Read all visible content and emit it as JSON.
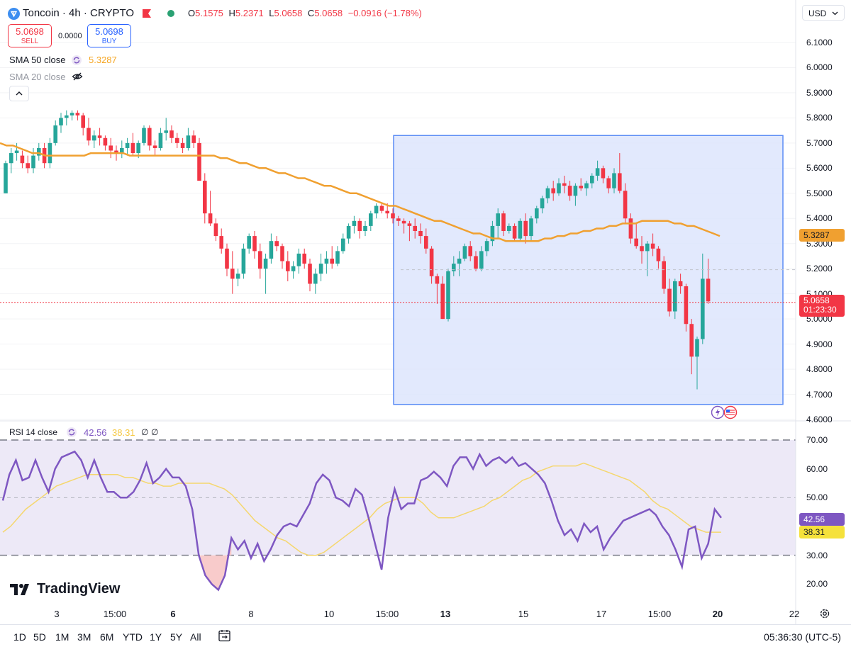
{
  "header": {
    "title": "Toncoin · 4h · CRYPTO",
    "ohlc": [
      {
        "k": "O",
        "v": "5.1575"
      },
      {
        "k": "H",
        "v": "5.2371"
      },
      {
        "k": "L",
        "v": "5.0658"
      },
      {
        "k": "C",
        "v": "5.0658"
      },
      {
        "k": "",
        "v": "−0.0916 (−1.78%)"
      }
    ],
    "sell_price": "5.0698",
    "sell_label": "SELL",
    "spread": "0.0000",
    "buy_price": "5.0698",
    "buy_label": "BUY"
  },
  "indicators": {
    "sma50_label": "SMA 50 close",
    "sma50_value": "5.3287",
    "sma20_label": "SMA 20 close",
    "rsi_label": "RSI 14 close",
    "rsi_value": "42.56",
    "rsi_ma_value": "38.31",
    "rsi_sym1": "∅",
    "rsi_sym2": "∅"
  },
  "currency": "USD",
  "price_axis": [
    "6.1000",
    "6.0000",
    "5.9000",
    "5.8000",
    "5.7000",
    "5.6000",
    "5.5000",
    "5.4000",
    "5.3000",
    "5.2000",
    "5.1000",
    "5.0000",
    "4.9000",
    "4.8000",
    "4.7000",
    "4.6000"
  ],
  "price_tags": {
    "sma": "5.3287",
    "last": "5.0658",
    "countdown": "01:23:30"
  },
  "rsi_axis": [
    "70.00",
    "60.00",
    "50.00",
    "40.00",
    "30.00",
    "20.00"
  ],
  "rsi_tags": {
    "rsi": "42.56",
    "ma": "38.31"
  },
  "time_axis": [
    {
      "label": "3",
      "bold": false
    },
    {
      "label": "15:00",
      "bold": false
    },
    {
      "label": "6",
      "bold": true
    },
    {
      "label": "8",
      "bold": false
    },
    {
      "label": "10",
      "bold": false
    },
    {
      "label": "15:00",
      "bold": false
    },
    {
      "label": "13",
      "bold": true
    },
    {
      "label": "15",
      "bold": false
    },
    {
      "label": "17",
      "bold": false
    },
    {
      "label": "15:00",
      "bold": false
    },
    {
      "label": "20",
      "bold": true
    },
    {
      "label": "22",
      "bold": false
    }
  ],
  "ranges": [
    "1D",
    "5D",
    "1M",
    "3M",
    "6M",
    "YTD",
    "1Y",
    "5Y",
    "All"
  ],
  "clock": "05:36:30 (UTC-5)",
  "brand": "TradingView",
  "colors": {
    "up": "#26a69a",
    "down": "#f23645",
    "sma": "#f0a030",
    "rsi": "#7e57c2",
    "rsi_ma": "#f5d76e",
    "box_fill": "#dde5fd",
    "box_border": "#5b8cf5",
    "rsi_band": "#ede9f7"
  },
  "chart_data": {
    "type": "candlestick",
    "interval": "4h",
    "price_range": [
      4.6,
      6.1
    ],
    "candles": [
      [
        5.5,
        5.63,
        5.5,
        5.62
      ],
      [
        5.62,
        5.68,
        5.58,
        5.66
      ],
      [
        5.66,
        5.7,
        5.63,
        5.67
      ],
      [
        5.65,
        5.67,
        5.6,
        5.62
      ],
      [
        5.62,
        5.65,
        5.58,
        5.6
      ],
      [
        5.6,
        5.68,
        5.58,
        5.65
      ],
      [
        5.65,
        5.7,
        5.63,
        5.68
      ],
      [
        5.68,
        5.7,
        5.6,
        5.62
      ],
      [
        5.62,
        5.72,
        5.6,
        5.7
      ],
      [
        5.7,
        5.79,
        5.69,
        5.77
      ],
      [
        5.77,
        5.82,
        5.74,
        5.8
      ],
      [
        5.8,
        5.83,
        5.77,
        5.81
      ],
      [
        5.81,
        5.83,
        5.79,
        5.82
      ],
      [
        5.82,
        5.83,
        5.79,
        5.81
      ],
      [
        5.81,
        5.82,
        5.73,
        5.76
      ],
      [
        5.76,
        5.8,
        5.69,
        5.71
      ],
      [
        5.71,
        5.75,
        5.68,
        5.73
      ],
      [
        5.73,
        5.76,
        5.69,
        5.72
      ],
      [
        5.72,
        5.73,
        5.67,
        5.69
      ],
      [
        5.69,
        5.72,
        5.64,
        5.67
      ],
      [
        5.67,
        5.69,
        5.63,
        5.66
      ],
      [
        5.66,
        5.71,
        5.64,
        5.68
      ],
      [
        5.68,
        5.72,
        5.65,
        5.7
      ],
      [
        5.7,
        5.74,
        5.65,
        5.66
      ],
      [
        5.66,
        5.71,
        5.64,
        5.7
      ],
      [
        5.7,
        5.77,
        5.69,
        5.76
      ],
      [
        5.76,
        5.77,
        5.67,
        5.69
      ],
      [
        5.69,
        5.71,
        5.65,
        5.68
      ],
      [
        5.68,
        5.76,
        5.67,
        5.74
      ],
      [
        5.74,
        5.8,
        5.71,
        5.75
      ],
      [
        5.75,
        5.77,
        5.7,
        5.72
      ],
      [
        5.72,
        5.74,
        5.68,
        5.7
      ],
      [
        5.7,
        5.72,
        5.66,
        5.68
      ],
      [
        5.68,
        5.76,
        5.67,
        5.73
      ],
      [
        5.73,
        5.75,
        5.68,
        5.7
      ],
      [
        5.7,
        5.72,
        5.55,
        5.55
      ],
      [
        5.55,
        5.58,
        5.38,
        5.42
      ],
      [
        5.42,
        5.51,
        5.37,
        5.38
      ],
      [
        5.38,
        5.4,
        5.31,
        5.33
      ],
      [
        5.33,
        5.36,
        5.26,
        5.28
      ],
      [
        5.28,
        5.3,
        5.17,
        5.2
      ],
      [
        5.2,
        5.27,
        5.1,
        5.16
      ],
      [
        5.16,
        5.2,
        5.13,
        5.18
      ],
      [
        5.18,
        5.3,
        5.16,
        5.28
      ],
      [
        5.28,
        5.34,
        5.26,
        5.33
      ],
      [
        5.33,
        5.35,
        5.24,
        5.27
      ],
      [
        5.27,
        5.3,
        5.16,
        5.2
      ],
      [
        5.2,
        5.26,
        5.1,
        5.24
      ],
      [
        5.24,
        5.34,
        5.22,
        5.31
      ],
      [
        5.31,
        5.33,
        5.27,
        5.29
      ],
      [
        5.29,
        5.3,
        5.2,
        5.23
      ],
      [
        5.23,
        5.27,
        5.15,
        5.19
      ],
      [
        5.19,
        5.23,
        5.16,
        5.21
      ],
      [
        5.21,
        5.28,
        5.18,
        5.26
      ],
      [
        5.26,
        5.28,
        5.2,
        5.22
      ],
      [
        5.22,
        5.24,
        5.11,
        5.14
      ],
      [
        5.14,
        5.2,
        5.1,
        5.18
      ],
      [
        5.18,
        5.26,
        5.15,
        5.22
      ],
      [
        5.22,
        5.27,
        5.18,
        5.24
      ],
      [
        5.24,
        5.29,
        5.2,
        5.22
      ],
      [
        5.22,
        5.29,
        5.21,
        5.27
      ],
      [
        5.27,
        5.34,
        5.26,
        5.32
      ],
      [
        5.32,
        5.38,
        5.3,
        5.37
      ],
      [
        5.37,
        5.41,
        5.34,
        5.39
      ],
      [
        5.39,
        5.4,
        5.32,
        5.35
      ],
      [
        5.35,
        5.39,
        5.33,
        5.37
      ],
      [
        5.37,
        5.43,
        5.35,
        5.42
      ],
      [
        5.42,
        5.46,
        5.4,
        5.45
      ],
      [
        5.45,
        5.46,
        5.42,
        5.43
      ],
      [
        5.43,
        5.46,
        5.4,
        5.42
      ],
      [
        5.42,
        5.44,
        5.38,
        5.4
      ],
      [
        5.4,
        5.41,
        5.37,
        5.39
      ],
      [
        5.39,
        5.4,
        5.34,
        5.38
      ],
      [
        5.38,
        5.39,
        5.31,
        5.37
      ],
      [
        5.37,
        5.4,
        5.32,
        5.35
      ],
      [
        5.35,
        5.38,
        5.3,
        5.33
      ],
      [
        5.33,
        5.36,
        5.26,
        5.28
      ],
      [
        5.28,
        5.29,
        5.14,
        5.17
      ],
      [
        5.17,
        5.18,
        5.06,
        5.14
      ],
      [
        5.14,
        5.17,
        5.0,
        5.0
      ],
      [
        5.0,
        5.2,
        4.99,
        5.19
      ],
      [
        5.19,
        5.25,
        5.17,
        5.22
      ],
      [
        5.22,
        5.27,
        5.17,
        5.24
      ],
      [
        5.24,
        5.3,
        5.23,
        5.29
      ],
      [
        5.29,
        5.31,
        5.23,
        5.25
      ],
      [
        5.25,
        5.27,
        5.19,
        5.2
      ],
      [
        5.2,
        5.29,
        5.19,
        5.27
      ],
      [
        5.27,
        5.32,
        5.25,
        5.31
      ],
      [
        5.31,
        5.39,
        5.29,
        5.37
      ],
      [
        5.37,
        5.44,
        5.32,
        5.42
      ],
      [
        5.42,
        5.43,
        5.33,
        5.35
      ],
      [
        5.35,
        5.38,
        5.34,
        5.37
      ],
      [
        5.37,
        5.38,
        5.31,
        5.32
      ],
      [
        5.32,
        5.4,
        5.31,
        5.39
      ],
      [
        5.39,
        5.42,
        5.3,
        5.33
      ],
      [
        5.33,
        5.41,
        5.31,
        5.4
      ],
      [
        5.4,
        5.45,
        5.38,
        5.44
      ],
      [
        5.44,
        5.49,
        5.42,
        5.48
      ],
      [
        5.48,
        5.53,
        5.46,
        5.52
      ],
      [
        5.52,
        5.55,
        5.47,
        5.5
      ],
      [
        5.5,
        5.56,
        5.49,
        5.54
      ],
      [
        5.54,
        5.57,
        5.5,
        5.53
      ],
      [
        5.53,
        5.55,
        5.47,
        5.49
      ],
      [
        5.49,
        5.54,
        5.45,
        5.53
      ],
      [
        5.53,
        5.56,
        5.51,
        5.52
      ],
      [
        5.52,
        5.55,
        5.49,
        5.54
      ],
      [
        5.54,
        5.58,
        5.52,
        5.57
      ],
      [
        5.57,
        5.63,
        5.55,
        5.6
      ],
      [
        5.6,
        5.61,
        5.54,
        5.56
      ],
      [
        5.56,
        5.57,
        5.5,
        5.52
      ],
      [
        5.52,
        5.6,
        5.5,
        5.58
      ],
      [
        5.58,
        5.66,
        5.5,
        5.51
      ],
      [
        5.51,
        5.54,
        5.38,
        5.4
      ],
      [
        5.4,
        5.42,
        5.3,
        5.32
      ],
      [
        5.32,
        5.38,
        5.28,
        5.29
      ],
      [
        5.29,
        5.33,
        5.22,
        5.27
      ],
      [
        5.27,
        5.31,
        5.17,
        5.3
      ],
      [
        5.3,
        5.34,
        5.25,
        5.28
      ],
      [
        5.28,
        5.29,
        5.2,
        5.23
      ],
      [
        5.23,
        5.25,
        5.1,
        5.12
      ],
      [
        5.12,
        5.16,
        5.01,
        5.03
      ],
      [
        5.03,
        5.16,
        5.0,
        5.15
      ],
      [
        5.15,
        5.18,
        5.1,
        5.13
      ],
      [
        5.13,
        5.14,
        4.95,
        4.98
      ],
      [
        4.98,
        5.0,
        4.78,
        4.85
      ],
      [
        4.85,
        4.93,
        4.72,
        4.92
      ],
      [
        4.92,
        5.26,
        4.9,
        5.16
      ],
      [
        5.16,
        5.24,
        5.06,
        5.07
      ]
    ],
    "sma50": [
      5.7,
      5.69,
      5.69,
      5.68,
      5.67,
      5.66,
      5.66,
      5.65,
      5.65,
      5.65,
      5.65,
      5.65,
      5.65,
      5.65,
      5.66,
      5.66,
      5.66,
      5.66,
      5.66,
      5.66,
      5.65,
      5.65,
      5.65,
      5.65,
      5.65,
      5.65,
      5.65,
      5.65,
      5.65,
      5.65,
      5.65,
      5.65,
      5.65,
      5.65,
      5.64,
      5.64,
      5.63,
      5.62,
      5.62,
      5.61,
      5.6,
      5.6,
      5.59,
      5.58,
      5.58,
      5.57,
      5.56,
      5.56,
      5.55,
      5.54,
      5.53,
      5.53,
      5.52,
      5.51,
      5.5,
      5.5,
      5.49,
      5.48,
      5.47,
      5.46,
      5.45,
      5.45,
      5.44,
      5.43,
      5.42,
      5.41,
      5.4,
      5.39,
      5.39,
      5.38,
      5.37,
      5.36,
      5.35,
      5.34,
      5.34,
      5.33,
      5.32,
      5.32,
      5.31,
      5.31,
      5.31,
      5.31,
      5.31,
      5.31,
      5.32,
      5.32,
      5.33,
      5.33,
      5.34,
      5.34,
      5.35,
      5.35,
      5.36,
      5.36,
      5.37,
      5.37,
      5.38,
      5.38,
      5.38,
      5.39,
      5.39,
      5.39,
      5.39,
      5.39,
      5.38,
      5.38,
      5.37,
      5.37,
      5.36,
      5.35,
      5.34,
      5.33
    ],
    "rsi": [
      49,
      58,
      63,
      56,
      57,
      63,
      57,
      52,
      60,
      64,
      65,
      66,
      63,
      57,
      63,
      57,
      52,
      52,
      50,
      50,
      52,
      56,
      62,
      55,
      57,
      60,
      57,
      57,
      54,
      46,
      30,
      23,
      20,
      18,
      23,
      36,
      32,
      35,
      29,
      34,
      28,
      32,
      37,
      40,
      41,
      40,
      44,
      48,
      55,
      58,
      56,
      50,
      49,
      47,
      53,
      51,
      43,
      34,
      25,
      43,
      53,
      46,
      48,
      48,
      56,
      57,
      59,
      57,
      54,
      61,
      64,
      64,
      60,
      65,
      61,
      63,
      64,
      62,
      64,
      61,
      62,
      60,
      58,
      55,
      49,
      42,
      37,
      39,
      35,
      41,
      38,
      40,
      32,
      36,
      39,
      42,
      43,
      44,
      45,
      46,
      44,
      40,
      37,
      32,
      26,
      39,
      40,
      29,
      34,
      46,
      43
    ],
    "rsi_ma": [
      38,
      40,
      43,
      46,
      48,
      50,
      52,
      54,
      55,
      56,
      57,
      58,
      58,
      58,
      58,
      58,
      57,
      57,
      56,
      55,
      55,
      54,
      54,
      55,
      55,
      55,
      55,
      55,
      54,
      53,
      51,
      48,
      45,
      42,
      40,
      38,
      36,
      35,
      33,
      31,
      30,
      30,
      31,
      33,
      35,
      37,
      39,
      41,
      43,
      46,
      48,
      49,
      50,
      50,
      50,
      48,
      45,
      43,
      43,
      43,
      44,
      45,
      46,
      47,
      49,
      50,
      52,
      54,
      56,
      57,
      59,
      60,
      61,
      61,
      61,
      61,
      62,
      61,
      60,
      59,
      58,
      57,
      56,
      54,
      52,
      49,
      47,
      46,
      44,
      42,
      40,
      39,
      38,
      38,
      38
    ]
  }
}
